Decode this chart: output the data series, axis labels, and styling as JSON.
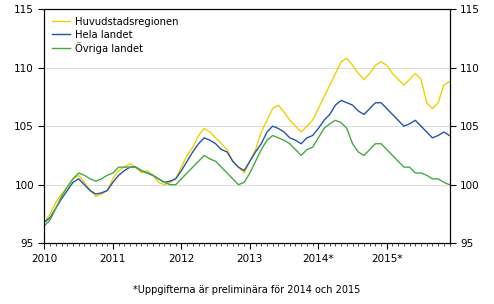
{
  "footnote": "*Uppgifterna är preliminära för 2014 och 2015",
  "legend_labels": [
    "Huvudstadsregionen",
    "Hela landet",
    "Övriga landet"
  ],
  "line_colors": [
    "#f0d000",
    "#2255aa",
    "#44aa44"
  ],
  "line_width": 1.0,
  "ylim": [
    95,
    115
  ],
  "yticks": [
    95,
    100,
    105,
    110,
    115
  ],
  "grid_color": "#cccccc",
  "background_color": "#ffffff",
  "n_months": 72,
  "huvudstadsregionen": [
    96.8,
    97.5,
    98.5,
    99.2,
    99.8,
    100.5,
    100.8,
    100.2,
    99.5,
    99.0,
    99.2,
    99.5,
    100.5,
    101.2,
    101.5,
    101.8,
    101.5,
    101.0,
    101.2,
    100.8,
    100.2,
    100.0,
    100.2,
    100.5,
    101.5,
    102.5,
    103.2,
    104.2,
    104.8,
    104.5,
    104.0,
    103.5,
    103.0,
    102.0,
    101.5,
    101.0,
    102.0,
    103.0,
    104.5,
    105.5,
    106.5,
    106.8,
    106.2,
    105.5,
    105.0,
    104.5,
    105.0,
    105.5,
    106.5,
    107.5,
    108.5,
    109.5,
    110.5,
    110.8,
    110.2,
    109.5,
    109.0,
    109.5,
    110.2,
    110.5,
    110.2,
    109.5,
    109.0,
    108.5,
    109.0,
    109.5,
    109.0,
    107.0,
    106.5,
    107.0,
    108.5,
    108.8
  ],
  "hela_landet": [
    96.8,
    97.2,
    98.0,
    98.8,
    99.5,
    100.2,
    100.5,
    100.0,
    99.5,
    99.2,
    99.3,
    99.5,
    100.2,
    100.8,
    101.2,
    101.5,
    101.5,
    101.2,
    101.0,
    100.8,
    100.5,
    100.2,
    100.3,
    100.5,
    101.2,
    102.0,
    102.8,
    103.5,
    104.0,
    103.8,
    103.5,
    103.0,
    102.8,
    102.0,
    101.5,
    101.2,
    102.0,
    102.8,
    103.5,
    104.5,
    105.0,
    104.8,
    104.5,
    104.0,
    103.8,
    103.5,
    104.0,
    104.2,
    104.8,
    105.5,
    106.0,
    106.8,
    107.2,
    107.0,
    106.8,
    106.3,
    106.0,
    106.5,
    107.0,
    107.0,
    106.5,
    106.0,
    105.5,
    105.0,
    105.2,
    105.5,
    105.0,
    104.5,
    104.0,
    104.2,
    104.5,
    104.2
  ],
  "ovriga_landet": [
    96.5,
    97.0,
    98.0,
    99.0,
    99.8,
    100.5,
    101.0,
    100.8,
    100.5,
    100.3,
    100.5,
    100.8,
    101.0,
    101.5,
    101.5,
    101.5,
    101.5,
    101.2,
    101.0,
    100.8,
    100.5,
    100.2,
    100.0,
    100.0,
    100.5,
    101.0,
    101.5,
    102.0,
    102.5,
    102.2,
    102.0,
    101.5,
    101.0,
    100.5,
    100.0,
    100.2,
    101.0,
    102.0,
    103.0,
    103.8,
    104.2,
    104.0,
    103.8,
    103.5,
    103.0,
    102.5,
    103.0,
    103.2,
    104.0,
    104.8,
    105.2,
    105.5,
    105.3,
    104.8,
    103.5,
    102.8,
    102.5,
    103.0,
    103.5,
    103.5,
    103.0,
    102.5,
    102.0,
    101.5,
    101.5,
    101.0,
    101.0,
    100.8,
    100.5,
    100.5,
    100.2,
    100.0
  ],
  "xtick_positions": [
    0,
    12,
    24,
    36,
    48,
    60
  ],
  "xtick_labels": [
    "2010",
    "2011",
    "2012",
    "2013",
    "2014*",
    "2015*"
  ],
  "footnote_fontsize": 7.0,
  "tick_fontsize": 7.5,
  "legend_fontsize": 7.2
}
